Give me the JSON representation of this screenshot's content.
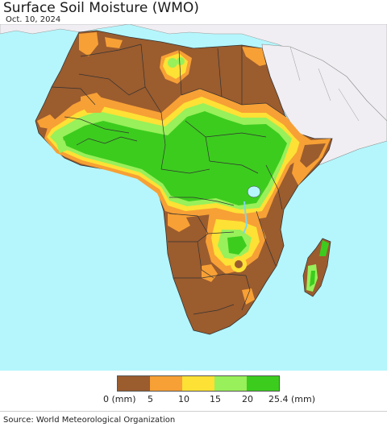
{
  "header": {
    "title": "Surface Soil Moisture (WMO)",
    "date": "Oct. 10, 2024"
  },
  "legend": {
    "unit_label": "(mm)",
    "colors": [
      "#9b5c2e",
      "#f7a035",
      "#fde135",
      "#fdfd45",
      "#98f05a",
      "#3ccc1e"
    ],
    "ticks": [
      "0 (mm)",
      "5",
      "10",
      "15",
      "20",
      "25.4 (mm)"
    ]
  },
  "map": {
    "ocean_color": "#b4f6fc",
    "land_outside_color": "#f0eef2",
    "border_color": "#444444"
  },
  "footer": {
    "source": "Source: World Meteorological Organization"
  }
}
